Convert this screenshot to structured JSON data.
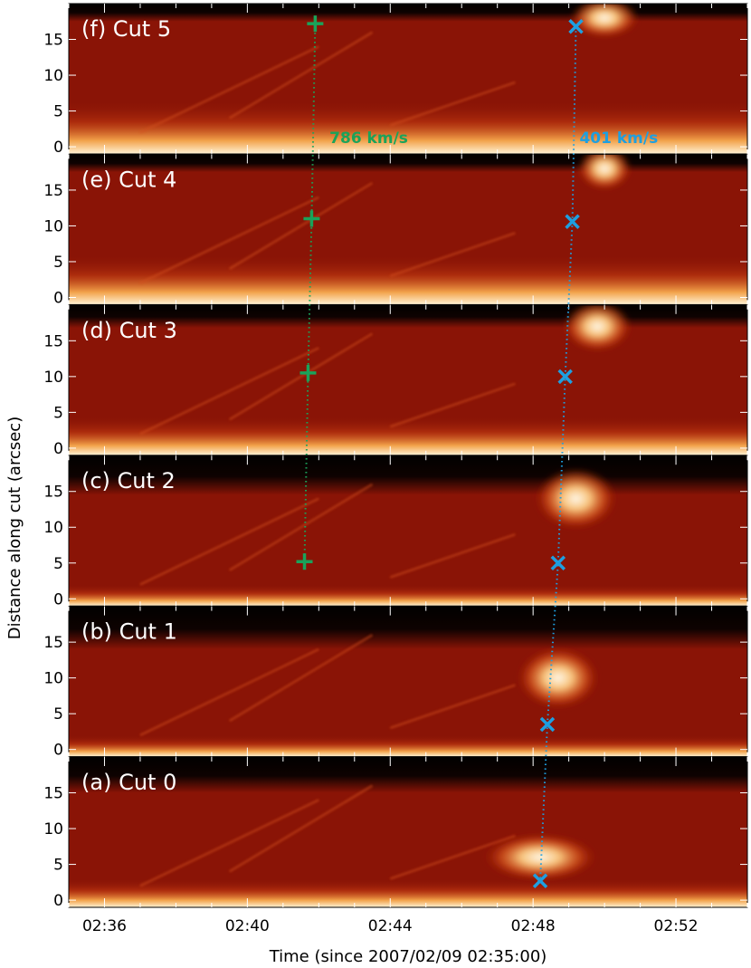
{
  "chart_data": {
    "type": "heatmap",
    "colormap": "red-temperature",
    "colors": {
      "dark": "#000000",
      "mid": "#8a1406",
      "bright": "#f2a24a",
      "saturated": "#fff6e0",
      "green": "#1aa35a",
      "blue": "#1e9fe0"
    },
    "xlabel": "Time (since 2007/02/09 02:35:00)",
    "ylabel": "Distance along cut (arcsec)",
    "xlim": [
      35,
      54
    ],
    "ylim": [
      -1,
      20
    ],
    "x_ticks": [
      {
        "value": 36,
        "label": "02:36"
      },
      {
        "value": 40,
        "label": "02:40"
      },
      {
        "value": 44,
        "label": "02:44"
      },
      {
        "value": 48,
        "label": "02:48"
      },
      {
        "value": 52,
        "label": "02:52"
      }
    ],
    "y_ticks": [
      {
        "value": 0,
        "label": "0"
      },
      {
        "value": 5,
        "label": "5"
      },
      {
        "value": 10,
        "label": "10"
      },
      {
        "value": 15,
        "label": "15"
      }
    ],
    "panels": [
      {
        "label": "(f) Cut 5",
        "plus": {
          "x": 41.9,
          "y": 17.2
        },
        "cross": {
          "x": 49.2,
          "y": 16.8
        }
      },
      {
        "label": "(e) Cut 4",
        "plus": {
          "x": 41.8,
          "y": 11.0
        },
        "cross": {
          "x": 49.1,
          "y": 10.6
        }
      },
      {
        "label": "(d) Cut 3",
        "plus": {
          "x": 41.7,
          "y": 10.5
        },
        "cross": {
          "x": 48.9,
          "y": 10.0
        }
      },
      {
        "label": "(c) Cut 2",
        "plus": {
          "x": 41.6,
          "y": 5.2
        },
        "cross": {
          "x": 48.7,
          "y": 5.0
        }
      },
      {
        "label": "(b) Cut 1",
        "cross": {
          "x": 48.4,
          "y": 3.5
        }
      },
      {
        "label": "(a) Cut 0",
        "cross": {
          "x": 48.2,
          "y": 2.7
        }
      }
    ],
    "speeds": [
      {
        "label": "786 km/s",
        "color": "green"
      },
      {
        "label": "401 km/s",
        "color": "blue"
      }
    ]
  }
}
